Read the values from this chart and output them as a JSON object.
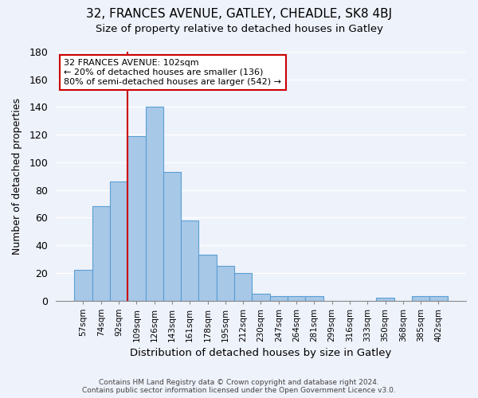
{
  "title": "32, FRANCES AVENUE, GATLEY, CHEADLE, SK8 4BJ",
  "subtitle": "Size of property relative to detached houses in Gatley",
  "xlabel": "Distribution of detached houses by size in Gatley",
  "ylabel": "Number of detached properties",
  "bar_labels": [
    "57sqm",
    "74sqm",
    "92sqm",
    "109sqm",
    "126sqm",
    "143sqm",
    "161sqm",
    "178sqm",
    "195sqm",
    "212sqm",
    "230sqm",
    "247sqm",
    "264sqm",
    "281sqm",
    "299sqm",
    "316sqm",
    "333sqm",
    "350sqm",
    "368sqm",
    "385sqm",
    "402sqm"
  ],
  "bar_values": [
    22,
    68,
    86,
    119,
    140,
    93,
    58,
    33,
    25,
    20,
    5,
    3,
    3,
    3,
    0,
    0,
    0,
    2,
    0,
    3,
    3
  ],
  "bar_color": "#a8c8e8",
  "bar_edge_color": "#5a9fd4",
  "vline_color": "#cc0000",
  "vline_pos": 2.5,
  "ylim": [
    0,
    180
  ],
  "yticks": [
    0,
    20,
    40,
    60,
    80,
    100,
    120,
    140,
    160,
    180
  ],
  "annotation_title": "32 FRANCES AVENUE: 102sqm",
  "annotation_line1": "← 20% of detached houses are smaller (136)",
  "annotation_line2": "80% of semi-detached houses are larger (542) →",
  "annotation_box_color": "#ffffff",
  "annotation_box_edge": "#cc0000",
  "footer_line1": "Contains HM Land Registry data © Crown copyright and database right 2024.",
  "footer_line2": "Contains public sector information licensed under the Open Government Licence v3.0.",
  "bg_color": "#eef2fb",
  "plot_bg_color": "#eef2fb",
  "figsize": [
    6.0,
    5.0
  ],
  "dpi": 100
}
